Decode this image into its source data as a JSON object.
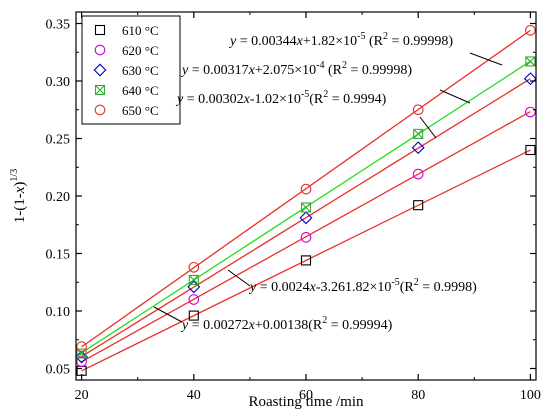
{
  "chart_data": {
    "type": "scatter",
    "xlabel": "Roasting time /min",
    "ylabel_main": "1-(1-",
    "ylabel_var": "x",
    "ylabel_close": ")",
    "ylabel_sup": "1/3",
    "xlim": [
      19,
      101
    ],
    "ylim": [
      0.04,
      0.36
    ],
    "x_ticks": [
      20,
      40,
      60,
      80,
      100
    ],
    "y_ticks": [
      0.05,
      0.1,
      0.15,
      0.2,
      0.25,
      0.3,
      0.35
    ],
    "x_tick_labels": [
      "20",
      "40",
      "60",
      "80",
      "100"
    ],
    "y_tick_labels": [
      "0.05",
      "0.10",
      "0.15",
      "0.20",
      "0.25",
      "0.30",
      "0.35"
    ],
    "legend_position": "top-left",
    "x": [
      20,
      40,
      60,
      80,
      100
    ],
    "series": [
      {
        "name": "610 °C",
        "marker": "square",
        "color": "#000000",
        "line_color": "#e8312b",
        "values": [
          0.048,
          0.096,
          0.144,
          0.192,
          0.24
        ],
        "fit": {
          "slope": 0.0024,
          "intercept": -3.26182e-05
        },
        "equation_parts": [
          "y",
          " = 0.0024",
          "x",
          "-3.261.82×10",
          "-5",
          "(R",
          "2",
          " = 0.9998)"
        ]
      },
      {
        "name": "620 °C",
        "marker": "circle",
        "color": "#d400d4",
        "line_color": "#e8312b",
        "values": [
          0.056,
          0.11,
          0.164,
          0.219,
          0.273
        ],
        "fit": {
          "slope": 0.00272,
          "intercept": 0.00138
        },
        "equation_parts": [
          "y",
          " = 0.00272",
          "x",
          "+0.00138(R",
          "2",
          " = 0.99994)"
        ]
      },
      {
        "name": "630 °C",
        "marker": "diamond",
        "color": "#0000cc",
        "line_color": "#e8312b",
        "values": [
          0.06,
          0.121,
          0.181,
          0.242,
          0.302
        ],
        "fit": {
          "slope": 0.00302,
          "intercept": -1.02e-05
        },
        "equation_parts": [
          "y",
          " = 0.00302",
          "x",
          "-1.02×10",
          "-5",
          "(R",
          "2",
          " = 0.9994)"
        ]
      },
      {
        "name": "640 °C",
        "marker": "square-x",
        "color": "#33aa33",
        "line_color": "#22dd22",
        "values": [
          0.063,
          0.127,
          0.19,
          0.254,
          0.317
        ],
        "fit": {
          "slope": 0.00317,
          "intercept": 0.0002075
        },
        "equation_parts": [
          "y",
          " = 0.00317",
          "x",
          "+2.075×10",
          "-4",
          " (R",
          "2",
          " = 0.99998)"
        ]
      },
      {
        "name": "650 °C",
        "marker": "circle",
        "color": "#e8312b",
        "line_color": "#e8312b",
        "values": [
          0.069,
          0.138,
          0.206,
          0.275,
          0.344
        ],
        "fit": {
          "slope": 0.00344,
          "intercept": 1.82e-05
        },
        "equation_parts": [
          "y",
          " = 0.00344",
          "x",
          "+1.82×10",
          "-5",
          " (R",
          "2",
          " = 0.99998)"
        ]
      }
    ]
  }
}
